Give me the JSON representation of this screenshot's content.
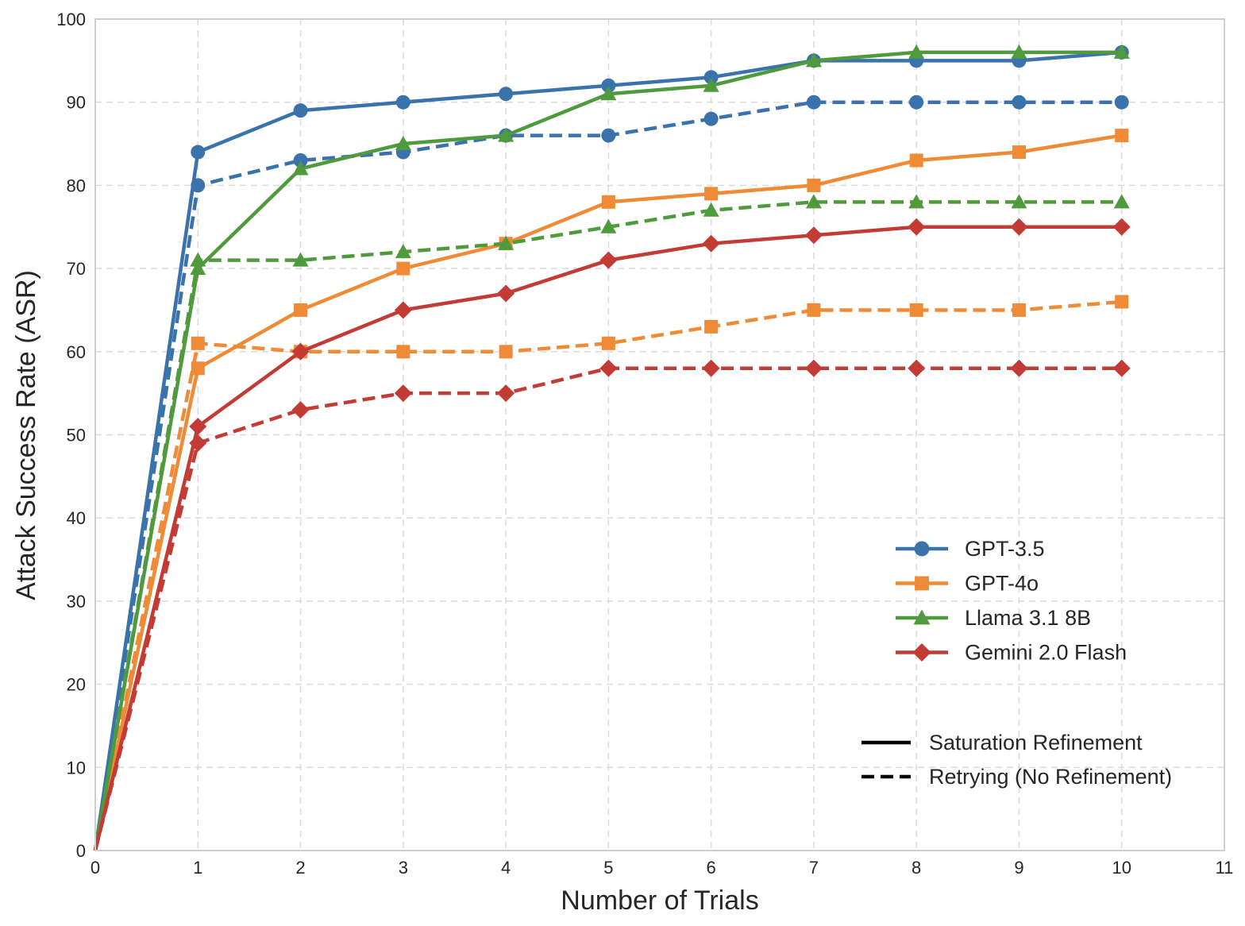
{
  "chart_data": {
    "type": "line",
    "title": "",
    "xlabel": "Number of Trials",
    "ylabel": "Attack Success Rate (ASR)",
    "xlim": [
      0,
      11
    ],
    "ylim": [
      0,
      100
    ],
    "x_ticks": [
      "0",
      "1",
      "2",
      "3",
      "4",
      "5",
      "6",
      "7",
      "8",
      "9",
      "10",
      "11"
    ],
    "y_ticks": [
      "0",
      "10",
      "20",
      "30",
      "40",
      "50",
      "60",
      "70",
      "80",
      "90",
      "100"
    ],
    "grid": true,
    "x": [
      0,
      1,
      2,
      3,
      4,
      5,
      6,
      7,
      8,
      9,
      10
    ],
    "series": [
      {
        "name": "GPT-3.5",
        "model": "GPT-3.5",
        "method": "Saturation Refinement",
        "color": "#3a73ab",
        "marker": "circle",
        "linestyle": "solid",
        "values": [
          0,
          84,
          89,
          90,
          91,
          92,
          93,
          95,
          95,
          95,
          96
        ]
      },
      {
        "name": "GPT-3.5",
        "model": "GPT-3.5",
        "method": "Retrying (No Refinement)",
        "color": "#3a73ab",
        "marker": "circle",
        "linestyle": "dashed",
        "values": [
          0,
          80,
          83,
          84,
          86,
          86,
          88,
          90,
          90,
          90,
          90
        ]
      },
      {
        "name": "GPT-4o",
        "model": "GPT-4o",
        "method": "Saturation Refinement",
        "color": "#ef8a36",
        "marker": "square",
        "linestyle": "solid",
        "values": [
          0,
          58,
          65,
          70,
          73,
          78,
          79,
          80,
          83,
          84,
          86
        ]
      },
      {
        "name": "GPT-4o",
        "model": "GPT-4o",
        "method": "Retrying (No Refinement)",
        "color": "#ef8a36",
        "marker": "square",
        "linestyle": "dashed",
        "values": [
          0,
          61,
          60,
          60,
          60,
          61,
          63,
          65,
          65,
          65,
          66
        ]
      },
      {
        "name": "Llama 3.1 8B",
        "model": "Llama 3.1 8B",
        "method": "Saturation Refinement",
        "color": "#4e9a3c",
        "marker": "triangle",
        "linestyle": "solid",
        "values": [
          0,
          70,
          82,
          85,
          86,
          91,
          92,
          95,
          96,
          96,
          96
        ]
      },
      {
        "name": "Llama 3.1 8B",
        "model": "Llama 3.1 8B",
        "method": "Retrying (No Refinement)",
        "color": "#4e9a3c",
        "marker": "triangle",
        "linestyle": "dashed",
        "values": [
          0,
          71,
          71,
          72,
          73,
          75,
          77,
          78,
          78,
          78,
          78
        ]
      },
      {
        "name": "Gemini 2.0 Flash",
        "model": "Gemini 2.0 Flash",
        "method": "Saturation Refinement",
        "color": "#c23b35",
        "marker": "diamond",
        "linestyle": "solid",
        "values": [
          0,
          51,
          60,
          65,
          67,
          71,
          73,
          74,
          75,
          75,
          75
        ]
      },
      {
        "name": "Gemini 2.0 Flash",
        "model": "Gemini 2.0 Flash",
        "method": "Retrying (No Refinement)",
        "color": "#c23b35",
        "marker": "diamond",
        "linestyle": "dashed",
        "values": [
          0,
          49,
          53,
          55,
          55,
          58,
          58,
          58,
          58,
          58,
          58
        ]
      }
    ],
    "legend_models": {
      "placement": "center-right",
      "entries": [
        {
          "label": "GPT-3.5",
          "color": "#3a73ab",
          "marker": "circle"
        },
        {
          "label": "GPT-4o",
          "color": "#ef8a36",
          "marker": "square"
        },
        {
          "label": "Llama 3.1 8B",
          "color": "#4e9a3c",
          "marker": "triangle"
        },
        {
          "label": "Gemini 2.0 Flash",
          "color": "#c23b35",
          "marker": "diamond"
        }
      ]
    },
    "legend_styles": {
      "placement": "lower-right",
      "entries": [
        {
          "label": "Saturation Refinement",
          "linestyle": "solid",
          "color": "#000000"
        },
        {
          "label": "Retrying (No Refinement)",
          "linestyle": "dashed",
          "color": "#000000"
        }
      ]
    }
  }
}
